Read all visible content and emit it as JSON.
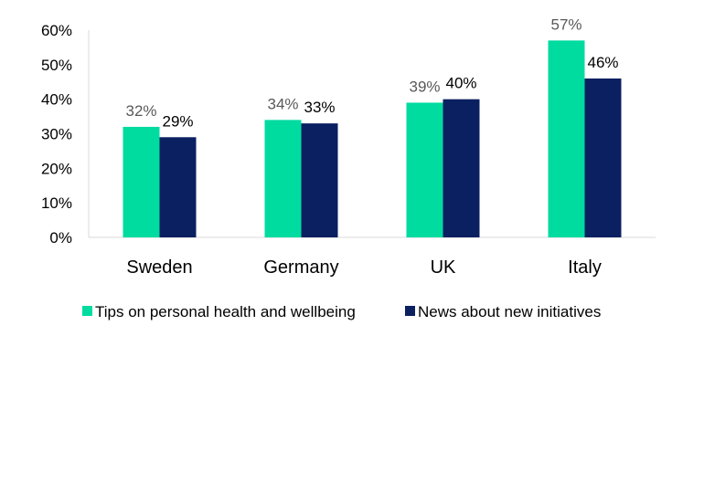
{
  "chart_data": {
    "type": "bar",
    "title": "",
    "xlabel": "",
    "ylabel": "",
    "categories": [
      "Sweden",
      "Germany",
      "UK",
      "Italy"
    ],
    "series": [
      {
        "name": "Tips on personal health and wellbeing",
        "values": [
          32,
          34,
          39,
          57
        ],
        "labels": [
          "32%",
          "34%",
          "39%",
          "57%"
        ],
        "color": "#00DBA0"
      },
      {
        "name": "News about new initiatives",
        "values": [
          29,
          33,
          40,
          46
        ],
        "labels": [
          "29%",
          "33%",
          "40%",
          "46%"
        ],
        "color": "#0A2060"
      }
    ],
    "ylim": [
      0,
      60
    ],
    "y_ticks": [
      "0%",
      "10%",
      "20%",
      "30%",
      "40%",
      "50%",
      "60%"
    ],
    "y_tick_values": [
      0,
      10,
      20,
      30,
      40,
      50,
      60
    ],
    "grid": false,
    "legend_position": "bottom",
    "axis_color": "#D9D9D9",
    "label_colors": [
      "#595959",
      "#000000"
    ]
  }
}
